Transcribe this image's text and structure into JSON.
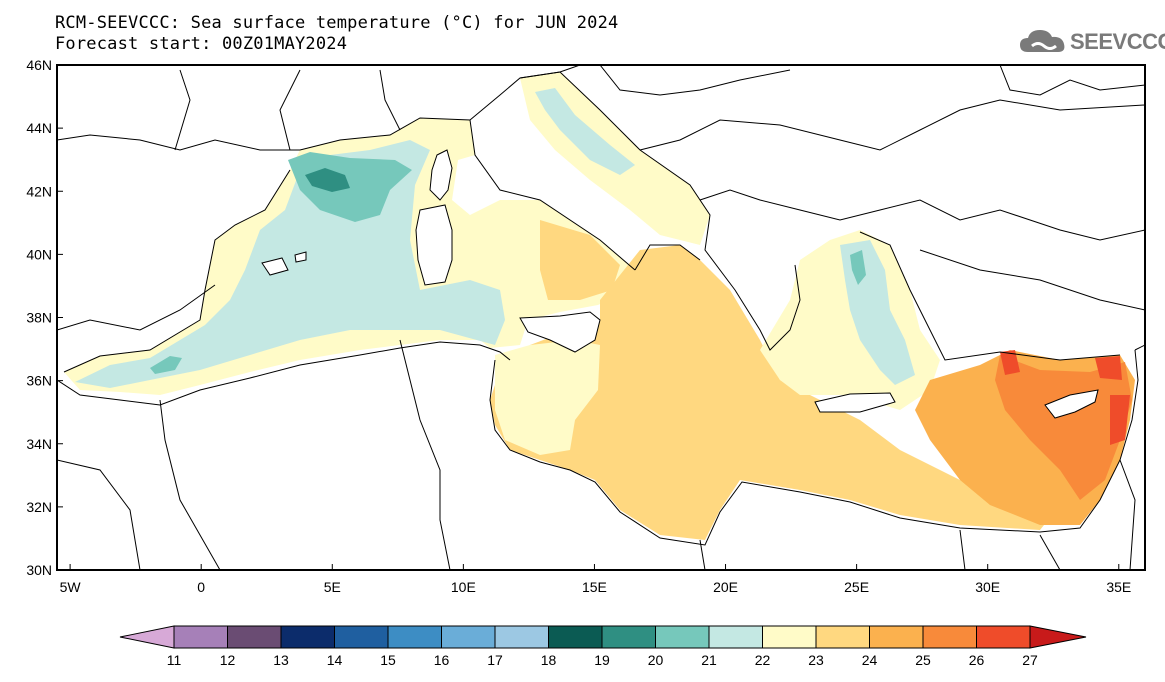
{
  "header": {
    "title_line1": "RCM-SEEVCCC: Sea surface temperature (°C) for JUN 2024",
    "title_line2": "Forecast start: 00Z01MAY2024",
    "logo_text": "SEEVCCC"
  },
  "map": {
    "lat_labels": [
      "46N",
      "44N",
      "42N",
      "40N",
      "38N",
      "36N",
      "34N",
      "32N",
      "30N"
    ],
    "lon_labels": [
      "5W",
      "0",
      "5E",
      "10E",
      "15E",
      "20E",
      "25E",
      "30E",
      "35E"
    ],
    "lat_range": [
      30,
      46
    ],
    "lon_range": [
      -5.5,
      36
    ]
  },
  "legend": {
    "labels": [
      "11",
      "12",
      "13",
      "14",
      "15",
      "16",
      "17",
      "18",
      "19",
      "20",
      "21",
      "22",
      "23",
      "24",
      "25",
      "26",
      "27"
    ],
    "colors": [
      "#d7a9d7",
      "#a680b8",
      "#6a4c73",
      "#0c2c6b",
      "#1f5fa0",
      "#3d8dc4",
      "#6aadd8",
      "#9cc8e3",
      "#0b5b53",
      "#2f8f82",
      "#76c8bb",
      "#c4e8e3",
      "#fffbc8",
      "#ffd880",
      "#fbb14e",
      "#f88a3a",
      "#ef4c2a",
      "#c81a1a"
    ]
  }
}
